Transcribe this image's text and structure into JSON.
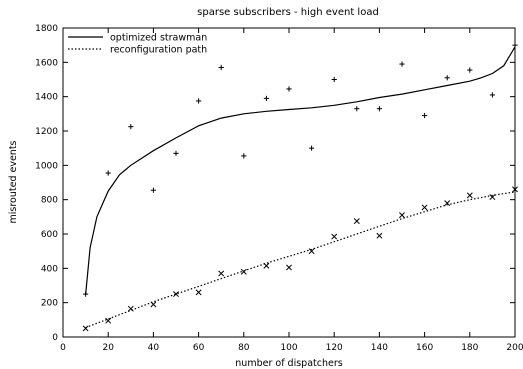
{
  "chart_data": {
    "type": "scatter",
    "title": "sparse subscribers - high event load",
    "xlabel": "number of dispatchers",
    "ylabel": "misrouted events",
    "xlim": [
      0,
      200
    ],
    "ylim": [
      0,
      1800
    ],
    "xticks": [
      0,
      20,
      40,
      60,
      80,
      100,
      120,
      140,
      160,
      180,
      200
    ],
    "yticks": [
      0,
      200,
      400,
      600,
      800,
      1000,
      1200,
      1400,
      1600,
      1800
    ],
    "grid": false,
    "legend_position": "top-left",
    "series": [
      {
        "name": "optimized strawman",
        "marker": "plus",
        "line_style": "solid",
        "x": [
          10,
          20,
          30,
          40,
          50,
          60,
          70,
          80,
          90,
          100,
          110,
          120,
          130,
          140,
          150,
          160,
          170,
          180,
          190,
          200
        ],
        "y": [
          250,
          955,
          1225,
          855,
          1070,
          1375,
          1570,
          1055,
          1390,
          1445,
          1100,
          1500,
          1330,
          1330,
          1590,
          1290,
          1510,
          1555,
          1410,
          1700
        ],
        "fit": {
          "x": [
            10,
            12,
            15,
            20,
            25,
            30,
            40,
            50,
            60,
            70,
            80,
            90,
            100,
            110,
            120,
            130,
            140,
            150,
            160,
            170,
            180,
            185,
            190,
            195,
            200
          ],
          "y": [
            245,
            520,
            700,
            850,
            945,
            1000,
            1085,
            1160,
            1230,
            1275,
            1300,
            1315,
            1325,
            1335,
            1350,
            1370,
            1395,
            1415,
            1440,
            1465,
            1490,
            1510,
            1535,
            1580,
            1690
          ]
        }
      },
      {
        "name": "reconfiguration path",
        "marker": "cross",
        "line_style": "dotted",
        "x": [
          10,
          20,
          30,
          40,
          50,
          60,
          70,
          80,
          90,
          100,
          110,
          120,
          130,
          140,
          150,
          160,
          170,
          180,
          190,
          200
        ],
        "y": [
          50,
          95,
          165,
          190,
          250,
          260,
          370,
          380,
          415,
          405,
          500,
          585,
          675,
          590,
          710,
          755,
          780,
          825,
          815,
          860
        ],
        "fit": {
          "x": [
            10,
            20,
            30,
            40,
            50,
            60,
            70,
            80,
            90,
            100,
            110,
            120,
            130,
            140,
            150,
            160,
            170,
            180,
            190,
            200
          ],
          "y": [
            55,
            105,
            155,
            205,
            250,
            295,
            340,
            385,
            430,
            470,
            510,
            555,
            600,
            645,
            690,
            730,
            770,
            800,
            825,
            845
          ]
        }
      }
    ]
  },
  "colors": {
    "axis": "#000000",
    "series": "#000000",
    "background": "#ffffff"
  }
}
